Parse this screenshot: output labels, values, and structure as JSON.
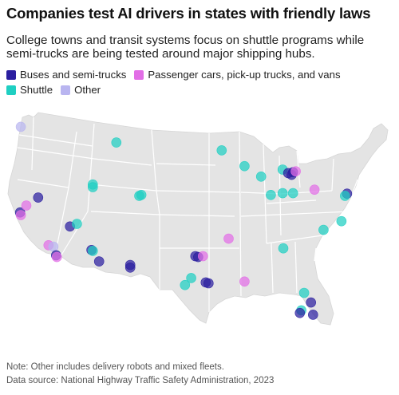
{
  "title": "Companies test AI drivers in states with friendly laws",
  "subtitle": "College towns and transit systems focus on shuttle programs while semi-trucks are being tested around major shipping hubs.",
  "legend": [
    {
      "label": "Buses and semi-trucks",
      "color": "#2b1fa0"
    },
    {
      "label": "Passenger cars, pick-up trucks, and vans",
      "color": "#e26ee6"
    },
    {
      "label": "Shuttle",
      "color": "#1fcfc2"
    },
    {
      "label": "Other",
      "color": "#b9b5f0"
    }
  ],
  "note": "Note: Other includes delivery robots and mixed fleets.",
  "source": "Data source: National Highway Traffic Safety Administration, 2023",
  "colors": {
    "land": "#e4e4e4",
    "state_border": "#ffffff",
    "background": "#ffffff"
  },
  "points": [
    {
      "lon": -122.3,
      "lat": 47.6,
      "category": "Other"
    },
    {
      "lon": -122.4,
      "lat": 37.8,
      "category": "Buses and semi-trucks"
    },
    {
      "lon": -122.3,
      "lat": 37.5,
      "category": "Passenger cars, pick-up trucks, and vans"
    },
    {
      "lon": -121.5,
      "lat": 38.6,
      "category": "Passenger cars, pick-up trucks, and vans"
    },
    {
      "lon": -118.3,
      "lat": 34.05,
      "category": "Passenger cars, pick-up trucks, and vans"
    },
    {
      "lon": -117.6,
      "lat": 33.9,
      "category": "Other"
    },
    {
      "lon": -117.2,
      "lat": 32.9,
      "category": "Buses and semi-trucks"
    },
    {
      "lon": -117.1,
      "lat": 32.7,
      "category": "Passenger cars, pick-up trucks, and vans"
    },
    {
      "lon": -119.8,
      "lat": 39.5,
      "category": "Buses and semi-trucks"
    },
    {
      "lon": -115.2,
      "lat": 36.2,
      "category": "Buses and semi-trucks"
    },
    {
      "lon": -114.2,
      "lat": 36.5,
      "category": "Shuttle"
    },
    {
      "lon": -112.1,
      "lat": 33.5,
      "category": "Buses and semi-trucks"
    },
    {
      "lon": -111.9,
      "lat": 33.4,
      "category": "Shuttle"
    },
    {
      "lon": -111.0,
      "lat": 32.2,
      "category": "Buses and semi-trucks"
    },
    {
      "lon": -111.9,
      "lat": 40.7,
      "category": "Shuttle"
    },
    {
      "lon": -111.9,
      "lat": 41.0,
      "category": "Shuttle"
    },
    {
      "lon": -108.5,
      "lat": 45.8,
      "category": "Shuttle"
    },
    {
      "lon": -104.9,
      "lat": 39.8,
      "category": "Shuttle"
    },
    {
      "lon": -105.2,
      "lat": 39.7,
      "category": "Shuttle"
    },
    {
      "lon": -106.5,
      "lat": 31.8,
      "category": "Buses and semi-trucks"
    },
    {
      "lon": -106.5,
      "lat": 31.5,
      "category": "Buses and semi-trucks"
    },
    {
      "lon": -97.1,
      "lat": 32.8,
      "category": "Buses and semi-trucks"
    },
    {
      "lon": -96.7,
      "lat": 32.7,
      "category": "Buses and semi-trucks"
    },
    {
      "lon": -96.0,
      "lat": 32.8,
      "category": "Passenger cars, pick-up trucks, and vans"
    },
    {
      "lon": -97.7,
      "lat": 30.3,
      "category": "Shuttle"
    },
    {
      "lon": -98.6,
      "lat": 29.5,
      "category": "Shuttle"
    },
    {
      "lon": -95.6,
      "lat": 29.8,
      "category": "Buses and semi-trucks"
    },
    {
      "lon": -95.2,
      "lat": 29.7,
      "category": "Buses and semi-trucks"
    },
    {
      "lon": -92.3,
      "lat": 34.8,
      "category": "Passenger cars, pick-up trucks, and vans"
    },
    {
      "lon": -90.0,
      "lat": 29.9,
      "category": "Passenger cars, pick-up trucks, and vans"
    },
    {
      "lon": -93.3,
      "lat": 44.9,
      "category": "Shuttle"
    },
    {
      "lon": -90.0,
      "lat": 43.1,
      "category": "Shuttle"
    },
    {
      "lon": -87.6,
      "lat": 41.9,
      "category": "Shuttle"
    },
    {
      "lon": -86.2,
      "lat": 39.8,
      "category": "Shuttle"
    },
    {
      "lon": -84.5,
      "lat": 42.7,
      "category": "Shuttle"
    },
    {
      "lon": -83.7,
      "lat": 42.3,
      "category": "Buses and semi-trucks"
    },
    {
      "lon": -83.0,
      "lat": 42.4,
      "category": "Buses and semi-trucks"
    },
    {
      "lon": -83.2,
      "lat": 42.1,
      "category": "Buses and semi-trucks"
    },
    {
      "lon": -82.6,
      "lat": 42.5,
      "category": "Passenger cars, pick-up trucks, and vans"
    },
    {
      "lon": -84.5,
      "lat": 40.0,
      "category": "Shuttle"
    },
    {
      "lon": -83.0,
      "lat": 40.0,
      "category": "Shuttle"
    },
    {
      "lon": -79.9,
      "lat": 40.4,
      "category": "Passenger cars, pick-up trucks, and vans"
    },
    {
      "lon": -75.2,
      "lat": 39.95,
      "category": "Buses and semi-trucks"
    },
    {
      "lon": -75.5,
      "lat": 39.7,
      "category": "Shuttle"
    },
    {
      "lon": -78.6,
      "lat": 35.8,
      "category": "Shuttle"
    },
    {
      "lon": -76.0,
      "lat": 36.8,
      "category": "Shuttle"
    },
    {
      "lon": -84.4,
      "lat": 33.7,
      "category": "Shuttle"
    },
    {
      "lon": -81.4,
      "lat": 28.6,
      "category": "Shuttle"
    },
    {
      "lon": -80.4,
      "lat": 27.5,
      "category": "Buses and semi-trucks"
    },
    {
      "lon": -80.1,
      "lat": 26.1,
      "category": "Buses and semi-trucks"
    },
    {
      "lon": -81.8,
      "lat": 26.6,
      "category": "Shuttle"
    },
    {
      "lon": -82.0,
      "lat": 26.3,
      "category": "Buses and semi-trucks"
    }
  ]
}
